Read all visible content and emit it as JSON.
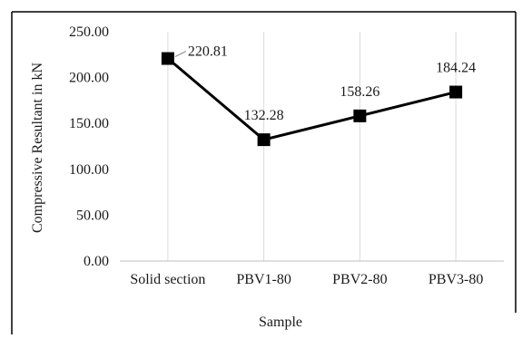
{
  "chart_data": {
    "type": "line",
    "title": "",
    "xlabel": "Sample",
    "ylabel": "Compressive Resultant in kN",
    "categories": [
      "Solid section",
      "PBV1-80",
      "PBV2-80",
      "PBV3-80"
    ],
    "series": [
      {
        "values": [
          220.81,
          132.28,
          158.26,
          184.24
        ]
      }
    ],
    "data_labels": [
      "220.81",
      "132.28",
      "158.26",
      "184.24"
    ],
    "ylim": [
      0,
      250
    ],
    "y_ticks": [
      "0.00",
      "50.00",
      "100.00",
      "150.00",
      "200.00",
      "250.00"
    ],
    "grid": "vertical drop lines at categories",
    "legend": "none",
    "colors": {
      "line": "#000000",
      "marker": "#000000",
      "gridline": "#d9d9d9",
      "frame": "#000000"
    }
  }
}
